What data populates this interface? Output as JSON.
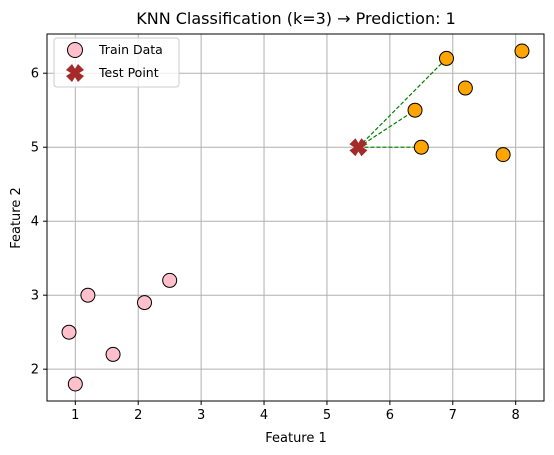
{
  "chart_data": {
    "type": "scatter",
    "title": "KNN Classification (k=3) → Prediction: 1",
    "xlabel": "Feature 1",
    "ylabel": "Feature 2",
    "xlim": [
      0.55,
      8.45
    ],
    "ylim": [
      1.57,
      6.53
    ],
    "xticks": [
      1,
      2,
      3,
      4,
      5,
      6,
      7,
      8
    ],
    "yticks": [
      2,
      3,
      4,
      5,
      6
    ],
    "grid": true,
    "legend": {
      "placement": "upper-left",
      "entries": [
        "Train Data",
        "Test Point"
      ]
    },
    "colors": {
      "class_0": "#ffc0cb",
      "class_1": "#ffa500",
      "marker_edge": "#000000",
      "test_point": "#a52a2a",
      "neighbor_line": "#008000",
      "grid": "#b0b0b0"
    },
    "train_data": [
      {
        "x": 1.0,
        "y": 1.8,
        "class": 0
      },
      {
        "x": 0.9,
        "y": 2.5,
        "class": 0
      },
      {
        "x": 1.2,
        "y": 3.0,
        "class": 0
      },
      {
        "x": 1.6,
        "y": 2.2,
        "class": 0
      },
      {
        "x": 2.1,
        "y": 2.9,
        "class": 0
      },
      {
        "x": 2.5,
        "y": 3.2,
        "class": 0
      },
      {
        "x": 6.5,
        "y": 5.0,
        "class": 1
      },
      {
        "x": 6.4,
        "y": 5.5,
        "class": 1
      },
      {
        "x": 6.9,
        "y": 6.2,
        "class": 1
      },
      {
        "x": 7.2,
        "y": 5.8,
        "class": 1
      },
      {
        "x": 7.8,
        "y": 4.9,
        "class": 1
      },
      {
        "x": 8.1,
        "y": 6.3,
        "class": 1
      }
    ],
    "test_point": {
      "x": 5.5,
      "y": 5.0
    },
    "neighbors": [
      {
        "x": 6.5,
        "y": 5.0
      },
      {
        "x": 6.4,
        "y": 5.5
      },
      {
        "x": 6.9,
        "y": 6.2
      }
    ]
  }
}
